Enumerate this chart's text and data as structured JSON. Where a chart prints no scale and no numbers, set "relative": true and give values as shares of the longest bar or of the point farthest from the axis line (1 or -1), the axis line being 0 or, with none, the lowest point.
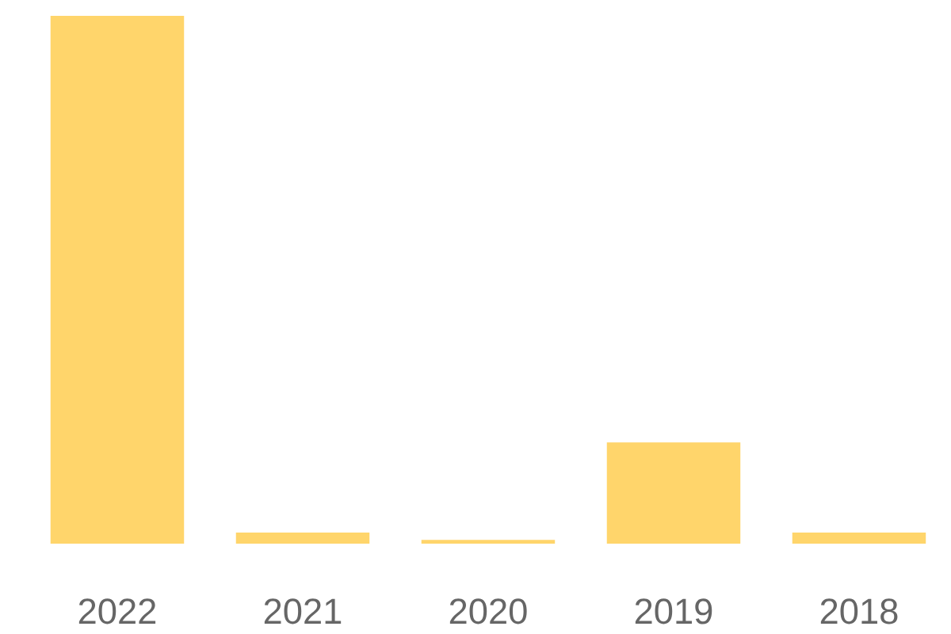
{
  "chart_data": {
    "type": "bar",
    "categories": [
      "2022",
      "2021",
      "2020",
      "2019",
      "2018"
    ],
    "values": [
      1,
      0.021,
      0.007,
      0.192,
      0.021
    ],
    "color": "#ffd56b",
    "relative": true
  }
}
